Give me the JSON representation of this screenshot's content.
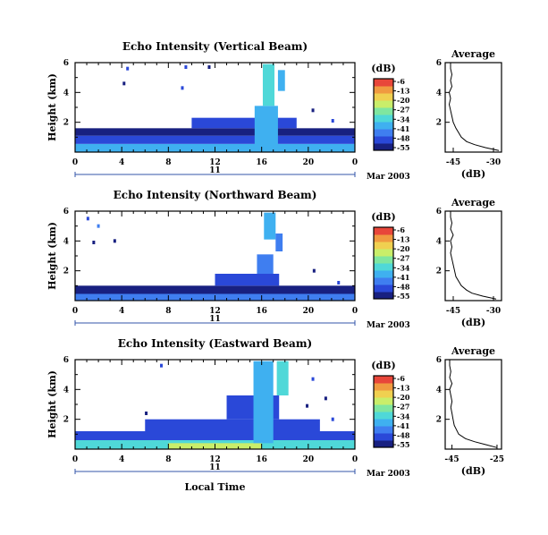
{
  "colors": {
    "colormap": [
      "#182080",
      "#2a48d8",
      "#3f7ef0",
      "#3fb0f0",
      "#4fd8d8",
      "#7fe6a0",
      "#c9ee6a",
      "#f0d050",
      "#f09a40",
      "#e8463a"
    ],
    "day_marker": "#3355aa",
    "axes": "#000000"
  },
  "chart_data": [
    {
      "type": "heatmap",
      "title": "Echo Intensity (Vertical Beam)",
      "ylabel": "Height (km)",
      "xlabel": "",
      "xticks": [
        "0",
        "4",
        "8",
        "12",
        "16",
        "20",
        "0"
      ],
      "xlim": [
        0,
        24
      ],
      "yticks": [
        "2",
        "4",
        "6"
      ],
      "ylim": [
        0,
        6
      ],
      "day_label": "11",
      "date_label": "Mar 2003",
      "colorbar": {
        "unit": "(dB)",
        "ticks": [
          "-6",
          "-13",
          "-20",
          "-27",
          "-34",
          "-41",
          "-48",
          "-55"
        ],
        "range": [
          -55,
          -6
        ]
      },
      "layers": [
        {
          "t0": 0,
          "t1": 24,
          "h0": 0.0,
          "h1": 0.55,
          "dB": -36
        },
        {
          "t0": 0,
          "t1": 24,
          "h0": 0.55,
          "h1": 1.1,
          "dB": -47
        },
        {
          "t0": 0,
          "t1": 24,
          "h0": 1.1,
          "h1": 1.6,
          "dB": -51
        },
        {
          "t0": 10,
          "t1": 19,
          "h0": 1.6,
          "h1": 2.3,
          "dB": -50
        },
        {
          "t0": 15.4,
          "t1": 17.4,
          "h0": 0.3,
          "h1": 3.1,
          "dB": -40
        },
        {
          "t0": 16.1,
          "t1": 17.1,
          "h0": 3.1,
          "h1": 5.9,
          "dB": -33
        },
        {
          "t0": 17.4,
          "t1": 18.0,
          "h0": 4.1,
          "h1": 5.5,
          "dB": -40
        }
      ],
      "specks": [
        {
          "t": 4.5,
          "h": 5.6,
          "dB": -50
        },
        {
          "t": 4.2,
          "h": 4.6,
          "dB": -52
        },
        {
          "t": 9.5,
          "h": 5.7,
          "dB": -49
        },
        {
          "t": 9.2,
          "h": 4.3,
          "dB": -50
        },
        {
          "t": 11.5,
          "h": 5.7,
          "dB": -52
        },
        {
          "t": 20.4,
          "h": 2.8,
          "dB": -52
        },
        {
          "t": 22.1,
          "h": 2.1,
          "dB": -50
        }
      ],
      "profile": {
        "title": "Average",
        "xlabel": "(dB)",
        "xticks": [
          "-45",
          "-30"
        ],
        "xlim": [
          -48,
          -27
        ],
        "yticks": [
          "2",
          "4",
          "6"
        ],
        "ylim": [
          0,
          6
        ],
        "height_km": [
          0.1,
          0.3,
          0.5,
          0.7,
          1.0,
          1.3,
          1.6,
          2.0,
          2.4,
          2.8,
          3.2,
          3.6,
          4.0,
          4.4,
          4.8,
          5.2,
          5.6,
          6.0
        ],
        "dB": [
          -28,
          -33,
          -37,
          -40,
          -42,
          -43,
          -44,
          -45,
          -45.5,
          -46,
          -46.5,
          -46,
          -46.5,
          -45.5,
          -46,
          -45.5,
          -46,
          -46
        ]
      }
    },
    {
      "type": "heatmap",
      "title": "Echo Intensity (Northward Beam)",
      "ylabel": "Height (km)",
      "xlabel": "",
      "xticks": [
        "0",
        "4",
        "8",
        "12",
        "16",
        "20",
        "0"
      ],
      "xlim": [
        0,
        24
      ],
      "yticks": [
        "2",
        "4",
        "6"
      ],
      "ylim": [
        0,
        6
      ],
      "day_label": "11",
      "date_label": "Mar 2003",
      "colorbar": {
        "unit": "(dB)",
        "ticks": [
          "-6",
          "-13",
          "-20",
          "-27",
          "-34",
          "-41",
          "-48",
          "-55"
        ],
        "range": [
          -55,
          -6
        ]
      },
      "layers": [
        {
          "t0": 0,
          "t1": 24,
          "h0": 0.0,
          "h1": 0.45,
          "dB": -44
        },
        {
          "t0": 0,
          "t1": 24,
          "h0": 0.45,
          "h1": 1.0,
          "dB": -51
        },
        {
          "t0": 12,
          "t1": 17.5,
          "h0": 1.0,
          "h1": 1.8,
          "dB": -49
        },
        {
          "t0": 15.6,
          "t1": 17.0,
          "h0": 1.8,
          "h1": 3.1,
          "dB": -45
        },
        {
          "t0": 16.2,
          "t1": 17.2,
          "h0": 4.1,
          "h1": 5.9,
          "dB": -36
        },
        {
          "t0": 17.2,
          "t1": 17.8,
          "h0": 3.3,
          "h1": 4.5,
          "dB": -42
        }
      ],
      "specks": [
        {
          "t": 1.1,
          "h": 5.5,
          "dB": -50
        },
        {
          "t": 2.0,
          "h": 5.0,
          "dB": -45
        },
        {
          "t": 1.6,
          "h": 3.9,
          "dB": -52
        },
        {
          "t": 3.4,
          "h": 4.0,
          "dB": -51
        },
        {
          "t": 20.5,
          "h": 2.0,
          "dB": -52
        },
        {
          "t": 22.6,
          "h": 1.2,
          "dB": -50
        }
      ],
      "profile": {
        "title": "Average",
        "xlabel": "(dB)",
        "xticks": [
          "-45",
          "-30"
        ],
        "xlim": [
          -48,
          -27
        ],
        "yticks": [
          "2",
          "4",
          "6"
        ],
        "ylim": [
          0,
          6
        ],
        "height_km": [
          0.1,
          0.3,
          0.5,
          0.7,
          1.0,
          1.3,
          1.6,
          2.0,
          2.4,
          2.8,
          3.2,
          3.6,
          4.0,
          4.4,
          4.8,
          5.2,
          5.6,
          6.0
        ],
        "dB": [
          -29,
          -34,
          -38,
          -40,
          -42,
          -43,
          -44,
          -44.5,
          -45,
          -45.5,
          -46,
          -45.5,
          -46,
          -45,
          -46,
          -45.5,
          -46,
          -46
        ]
      }
    },
    {
      "type": "heatmap",
      "title": "Echo Intensity (Eastward Beam)",
      "ylabel": "Height (km)",
      "xlabel": "Local Time",
      "xticks": [
        "0",
        "4",
        "8",
        "12",
        "16",
        "20",
        "0"
      ],
      "xlim": [
        0,
        24
      ],
      "yticks": [
        "2",
        "4",
        "6"
      ],
      "ylim": [
        0,
        6
      ],
      "day_label": "11",
      "date_label": "Mar 2003",
      "colorbar": {
        "unit": "(dB)",
        "ticks": [
          "-6",
          "-13",
          "-20",
          "-27",
          "-34",
          "-41",
          "-48",
          "-55"
        ],
        "range": [
          -55,
          -6
        ]
      },
      "layers": [
        {
          "t0": 0,
          "t1": 24,
          "h0": 0.0,
          "h1": 0.6,
          "dB": -34
        },
        {
          "t0": 8,
          "t1": 16,
          "h0": 0.0,
          "h1": 0.4,
          "dB": -24
        },
        {
          "t0": 0,
          "t1": 24,
          "h0": 0.6,
          "h1": 1.2,
          "dB": -48
        },
        {
          "t0": 6,
          "t1": 21,
          "h0": 1.2,
          "h1": 2.0,
          "dB": -50
        },
        {
          "t0": 13,
          "t1": 17.5,
          "h0": 2.0,
          "h1": 3.6,
          "dB": -48
        },
        {
          "t0": 15.3,
          "t1": 17.0,
          "h0": 0.4,
          "h1": 5.9,
          "dB": -38
        },
        {
          "t0": 17.3,
          "t1": 18.3,
          "h0": 3.6,
          "h1": 5.9,
          "dB": -33
        }
      ],
      "specks": [
        {
          "t": 7.4,
          "h": 5.6,
          "dB": -50
        },
        {
          "t": 6.1,
          "h": 2.4,
          "dB": -51
        },
        {
          "t": 20.4,
          "h": 4.7,
          "dB": -48
        },
        {
          "t": 19.9,
          "h": 2.9,
          "dB": -51
        },
        {
          "t": 21.5,
          "h": 3.4,
          "dB": -52
        },
        {
          "t": 22.1,
          "h": 2.0,
          "dB": -49
        }
      ],
      "profile": {
        "title": "Average",
        "xlabel": "(dB)",
        "xticks": [
          "-45",
          "-25"
        ],
        "xlim": [
          -48,
          -23
        ],
        "yticks": [
          "2",
          "4",
          "6"
        ],
        "ylim": [
          0,
          6
        ],
        "height_km": [
          0.1,
          0.3,
          0.5,
          0.7,
          1.0,
          1.3,
          1.6,
          2.0,
          2.4,
          2.8,
          3.2,
          3.6,
          4.0,
          4.4,
          4.8,
          5.2,
          5.6,
          6.0
        ],
        "dB": [
          -25,
          -30,
          -35,
          -39,
          -42,
          -43,
          -44,
          -44.5,
          -45,
          -45.5,
          -45,
          -45.5,
          -46,
          -45,
          -46,
          -45.5,
          -46,
          -46
        ]
      }
    }
  ]
}
